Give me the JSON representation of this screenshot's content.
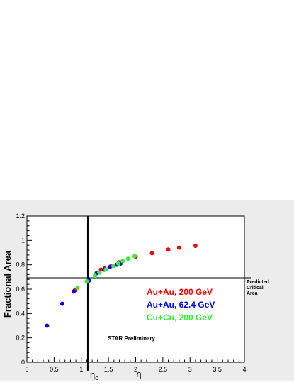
{
  "chart_data": {
    "type": "scatter",
    "xlabel": "η",
    "ylabel": "Fractional Area",
    "xlim": [
      0,
      4
    ],
    "ylim": [
      0,
      1.2
    ],
    "grid": false,
    "legend_placement": "right-middle",
    "x_ticks": [
      "0",
      "0.5",
      "1",
      "1.5",
      "2",
      "2.5",
      "3",
      "3.5",
      "4"
    ],
    "y_ticks": [
      "0",
      "0.2",
      "0.4",
      "0.6",
      "0.8",
      "1",
      "1.2"
    ],
    "series": [
      {
        "name": "Au+Au, 200 GeV",
        "color": "#ff0000",
        "points": [
          [
            0.88,
            0.59
          ],
          [
            1.36,
            0.76
          ],
          [
            1.43,
            0.77
          ],
          [
            1.55,
            0.79
          ],
          [
            1.69,
            0.82
          ],
          [
            2.0,
            0.865
          ],
          [
            2.3,
            0.895
          ],
          [
            2.6,
            0.925
          ],
          [
            2.8,
            0.94
          ],
          [
            3.1,
            0.955
          ]
        ]
      },
      {
        "name": "Au+Au, 62.4 GeV",
        "color": "#0000ff",
        "points": [
          [
            0.37,
            0.3
          ],
          [
            0.65,
            0.48
          ],
          [
            0.86,
            0.58
          ],
          [
            1.14,
            0.67
          ],
          [
            1.28,
            0.73
          ],
          [
            1.42,
            0.76
          ],
          [
            1.52,
            0.78
          ],
          [
            1.65,
            0.8
          ],
          [
            1.72,
            0.81
          ]
        ]
      },
      {
        "name": "Cu+Cu, 200 GeV",
        "color": "#33ee33",
        "points": [
          [
            0.93,
            0.61
          ],
          [
            1.1,
            0.665
          ],
          [
            1.25,
            0.71
          ],
          [
            1.33,
            0.735
          ],
          [
            1.45,
            0.76
          ],
          [
            1.59,
            0.79
          ],
          [
            1.68,
            0.81
          ],
          [
            1.76,
            0.83
          ],
          [
            1.86,
            0.85
          ],
          [
            1.98,
            0.87
          ]
        ]
      }
    ],
    "reference_lines": {
      "vertical_x": 1.12,
      "vertical_label": "η",
      "vertical_label_sub": "c",
      "horizontal_y": 0.69,
      "horizontal_label": [
        "Predicted",
        "Critical",
        "Area"
      ]
    },
    "annotation": "STAR Preliminary"
  }
}
